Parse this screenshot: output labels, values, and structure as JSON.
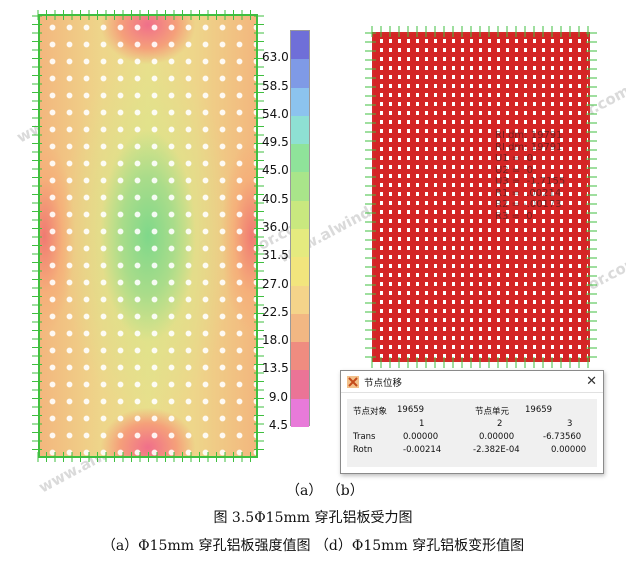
{
  "legend": {
    "labels": [
      "63.0",
      "58.5",
      "54.0",
      "49.5",
      "45.0",
      "40.5",
      "36.0",
      "31.5",
      "27.0",
      "22.5",
      "18.0",
      "13.5",
      "9.0",
      "4.5"
    ],
    "colors": [
      "#6f6fd8",
      "#7f9ae6",
      "#8cc3ee",
      "#8ee0d3",
      "#8fe39a",
      "#a9e58a",
      "#c9e87f",
      "#e5ea7f",
      "#f2e57d",
      "#f4d48a",
      "#f2b783",
      "#ef8c80",
      "#eb7496",
      "#e87ad9"
    ]
  },
  "deform_overlay": "RI dm: 19791\nRI dm: 19791\nU1 =  0\nU2 =  0\nU3 =  -1.7155\nR1 =  .00214\nR2 = -.00173\nR3 =  0",
  "dialog": {
    "title": "节点位移",
    "row1": {
      "label_obj": "节点对象",
      "val_obj": "19659",
      "label_elem": "节点单元",
      "val_elem": "19659"
    },
    "cols": [
      "1",
      "2",
      "3"
    ],
    "trans": {
      "label": "Trans",
      "v1": "0.00000",
      "v2": "0.00000",
      "v3": "-6.73560"
    },
    "rotn": {
      "label": "Rotn",
      "v1": "-0.00214",
      "v2": "-2.382E-04",
      "v3": "0.00000"
    }
  },
  "captions": {
    "ab": "（a）  （b）",
    "figure": "图 3.5Φ15mm 穿孔铝板受力图",
    "sub": "（a）Φ15mm 穿孔铝板强度值图 （d）Φ15mm 穿孔铝板变形值图"
  },
  "watermark": "www.alwindoor.com",
  "colors": {
    "support_green": "#3fbf3f",
    "deform_red": "#d42525"
  }
}
